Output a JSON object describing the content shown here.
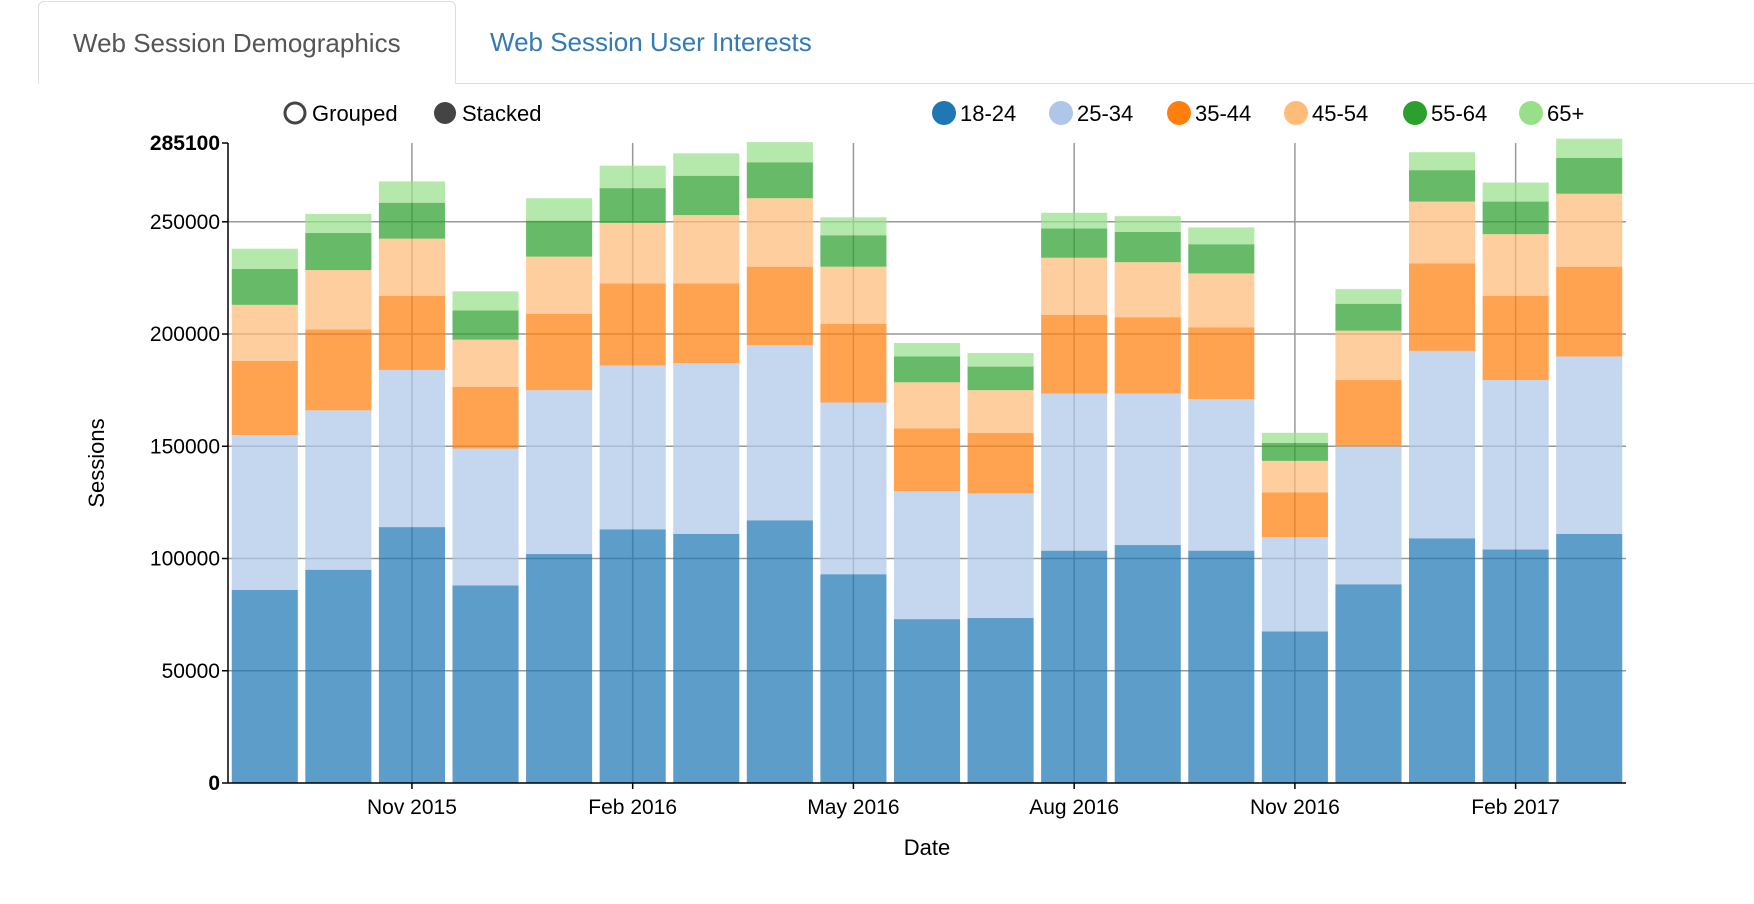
{
  "tabs": [
    {
      "label": "Web Session Demographics",
      "active": true
    },
    {
      "label": "Web Session User Interests",
      "active": false
    }
  ],
  "controls": {
    "options": [
      {
        "label": "Grouped",
        "selected": false
      },
      {
        "label": "Stacked",
        "selected": true
      }
    ],
    "selected_color": "#444444"
  },
  "chart_data": {
    "type": "bar",
    "stacked": true,
    "xlabel": "Date",
    "ylabel": "Sessions",
    "ylim": [
      0,
      285100
    ],
    "y_ticks": [
      0,
      50000,
      100000,
      150000,
      200000,
      250000,
      285100
    ],
    "y_bold_ticks": [
      0,
      285100
    ],
    "x_tick_labels": [
      "Nov 2015",
      "Feb 2016",
      "May 2016",
      "Aug 2016",
      "Nov 2016",
      "Feb 2017"
    ],
    "x_tick_positions": [
      2.5,
      5.5,
      8.5,
      11.5,
      14.5,
      17.5
    ],
    "grid": true,
    "legend_position": "top-right",
    "series": [
      {
        "name": "18-24",
        "color": "#1f77b4",
        "values": [
          86000,
          95000,
          114000,
          88000,
          102000,
          113000,
          111000,
          117000,
          93000,
          73000,
          73500,
          103500,
          106000,
          103500,
          67500,
          88500,
          109000,
          104000,
          111000
        ]
      },
      {
        "name": "25-34",
        "color": "#aec7e8",
        "values": [
          69000,
          71000,
          70000,
          61000,
          73000,
          73000,
          76000,
          78000,
          76500,
          57000,
          55500,
          70000,
          67500,
          67500,
          42000,
          61500,
          83500,
          75500,
          79000
        ]
      },
      {
        "name": "35-44",
        "color": "#ff7f0e",
        "values": [
          33000,
          36000,
          33000,
          27500,
          34000,
          36500,
          35500,
          35000,
          35000,
          28000,
          27000,
          35000,
          34000,
          32000,
          20000,
          29500,
          39000,
          37500,
          40000
        ]
      },
      {
        "name": "45-54",
        "color": "#ffbb78",
        "values": [
          25000,
          26500,
          25500,
          21000,
          25500,
          27000,
          30500,
          30500,
          25500,
          20500,
          19000,
          25500,
          24500,
          24000,
          14000,
          22000,
          27500,
          27500,
          32500
        ]
      },
      {
        "name": "55-64",
        "color": "#2ca02c",
        "values": [
          16000,
          16500,
          16000,
          13000,
          16000,
          15500,
          17500,
          16000,
          14000,
          11500,
          10500,
          13000,
          13500,
          13000,
          8000,
          12000,
          14000,
          14500,
          16000
        ]
      },
      {
        "name": "65+",
        "color": "#98df8a",
        "values": [
          9000,
          8500,
          9500,
          8500,
          10000,
          10000,
          10000,
          9000,
          8000,
          6000,
          6000,
          7000,
          7000,
          7500,
          4500,
          6500,
          8000,
          8500,
          8500
        ]
      }
    ]
  }
}
